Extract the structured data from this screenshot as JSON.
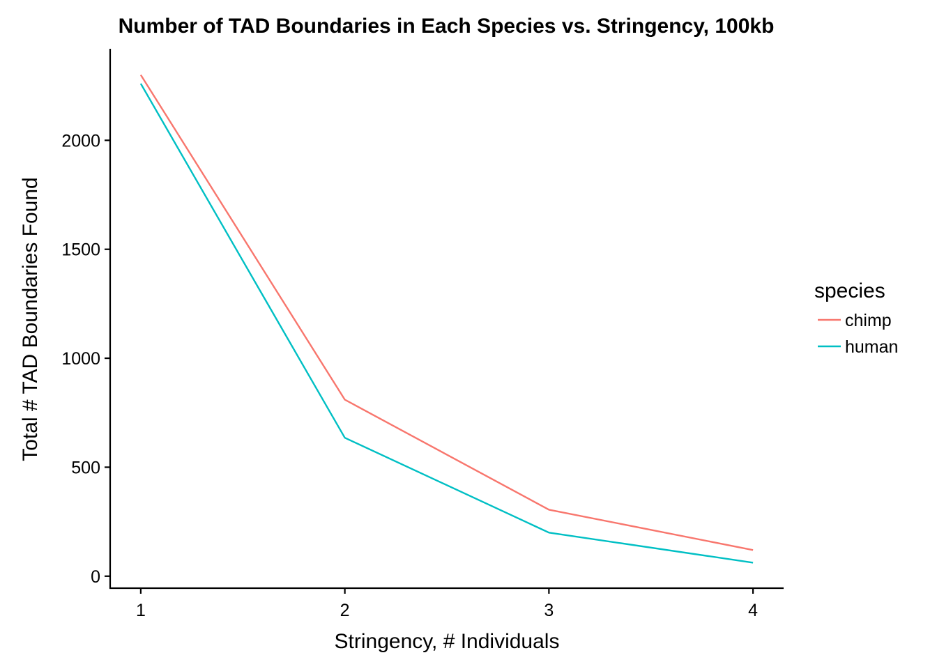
{
  "chart_data": {
    "type": "line",
    "title": "Number of TAD Boundaries in Each Species vs. Stringency, 100kb",
    "xlabel": "Stringency, # Individuals",
    "ylabel": "Total # TAD Boundaries Found",
    "x": [
      1,
      2,
      3,
      4
    ],
    "x_ticks": [
      "1",
      "2",
      "3",
      "4"
    ],
    "y_ticks": [
      "0",
      "500",
      "1000",
      "1500",
      "2000"
    ],
    "xlim": [
      0.85,
      4.15
    ],
    "ylim": [
      -55,
      2420
    ],
    "grid": false,
    "legend": {
      "title": "species",
      "position": "right"
    },
    "series": [
      {
        "name": "chimp",
        "color": "#F8766D",
        "values": [
          2300,
          810,
          305,
          120
        ]
      },
      {
        "name": "human",
        "color": "#00BFC4",
        "values": [
          2260,
          635,
          200,
          62
        ]
      }
    ]
  }
}
